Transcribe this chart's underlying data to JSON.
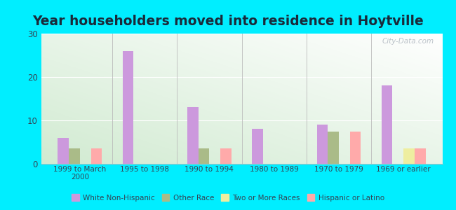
{
  "title": "Year householders moved into residence in Hoytville",
  "categories": [
    "1999 to March\n2000",
    "1995 to 1998",
    "1990 to 1994",
    "1980 to 1989",
    "1970 to 1979",
    "1969 or earlier"
  ],
  "series": {
    "White Non-Hispanic": [
      6,
      26,
      13,
      8,
      9,
      18
    ],
    "Other Race": [
      3.5,
      0,
      3.5,
      0,
      7.5,
      0
    ],
    "Two or More Races": [
      0,
      0,
      0,
      0,
      0,
      3.5
    ],
    "Hispanic or Latino": [
      3.5,
      0,
      3.5,
      0,
      7.5,
      3.5
    ]
  },
  "colors": {
    "White Non-Hispanic": "#cc99dd",
    "Other Race": "#aabb88",
    "Two or More Races": "#eeeea0",
    "Hispanic or Latino": "#ffaaaa"
  },
  "ylim": [
    0,
    30
  ],
  "yticks": [
    0,
    10,
    20,
    30
  ],
  "bar_width": 0.17,
  "background_color": "#00eeff",
  "watermark": "City-Data.com",
  "title_fontsize": 13.5
}
